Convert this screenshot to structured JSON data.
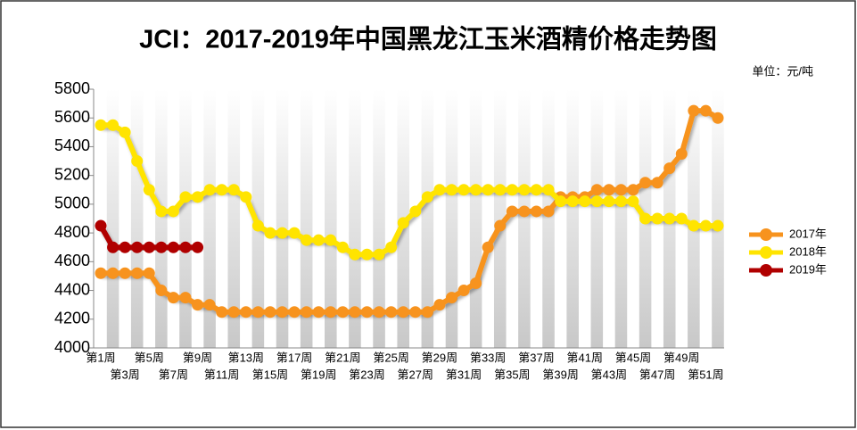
{
  "chart_data": {
    "type": "line",
    "title": "JCI：2017-2019年中国黑龙江玉米酒精价格走势图",
    "unit": "单位：元/吨",
    "categories": [
      "第1周",
      null,
      "第3周",
      null,
      "第5周",
      null,
      "第7周",
      null,
      "第9周",
      null,
      "第11周",
      null,
      "第13周",
      null,
      "第15周",
      null,
      "第17周",
      null,
      "第19周",
      null,
      "第21周",
      null,
      "第23周",
      null,
      "第25周",
      null,
      "第27周",
      null,
      "第29周",
      null,
      "第31周",
      null,
      "第33周",
      null,
      "第35周",
      null,
      "第37周",
      null,
      "第39周",
      null,
      "第41周",
      null,
      "第43周",
      null,
      "第45周",
      null,
      "第47周",
      null,
      "第49周",
      null,
      "第51周",
      null
    ],
    "series": [
      {
        "name": "2017年",
        "color": "#f7931e",
        "values": [
          4520,
          4520,
          4520,
          4520,
          4520,
          4400,
          4350,
          4350,
          4300,
          4300,
          4250,
          4250,
          4250,
          4250,
          4250,
          4250,
          4250,
          4250,
          4250,
          4250,
          4250,
          4250,
          4250,
          4250,
          4250,
          4250,
          4250,
          4250,
          4300,
          4350,
          4400,
          4450,
          4700,
          4850,
          4950,
          4950,
          4950,
          4950,
          5050,
          5050,
          5050,
          5100,
          5100,
          5100,
          5100,
          5150,
          5150,
          5250,
          5350,
          5650,
          5650,
          5600
        ]
      },
      {
        "name": "2018年",
        "color": "#ffe400",
        "values": [
          5550,
          5550,
          5500,
          5300,
          5100,
          4950,
          4950,
          5050,
          5050,
          5100,
          5100,
          5100,
          5050,
          4850,
          4800,
          4800,
          4800,
          4750,
          4750,
          4750,
          4700,
          4650,
          4650,
          4650,
          4700,
          4870,
          4950,
          5050,
          5100,
          5100,
          5100,
          5100,
          5100,
          5100,
          5100,
          5100,
          5100,
          5100,
          5020,
          5020,
          5020,
          5020,
          5020,
          5020,
          5020,
          4900,
          4900,
          4900,
          4900,
          4850,
          4850,
          4850
        ]
      },
      {
        "name": "2019年",
        "color": "#b00000",
        "values": [
          4850,
          4700,
          4700,
          4700,
          4700,
          4700,
          4700,
          4700,
          4700,
          null,
          null,
          null,
          null,
          null,
          null,
          null,
          null,
          null,
          null,
          null,
          null,
          null,
          null,
          null,
          null,
          null,
          null,
          null,
          null,
          null,
          null,
          null,
          null,
          null,
          null,
          null,
          null,
          null,
          null,
          null,
          null,
          null,
          null,
          null,
          null,
          null,
          null,
          null,
          null,
          null,
          null,
          null
        ]
      }
    ],
    "ylim": [
      4000,
      5800
    ],
    "yticks": [
      4000,
      4200,
      4400,
      4600,
      4800,
      5000,
      5200,
      5400,
      5600,
      5800
    ]
  }
}
